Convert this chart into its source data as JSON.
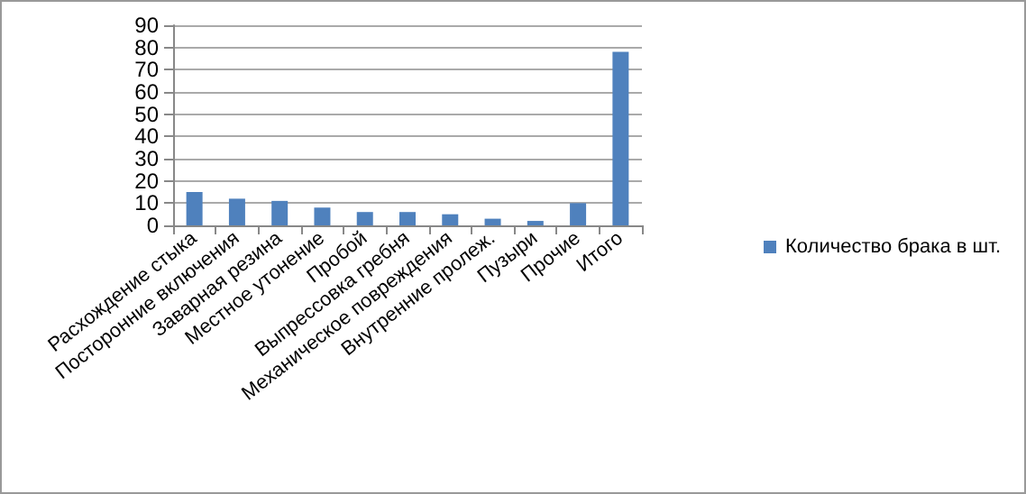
{
  "chart_data": {
    "type": "bar",
    "categories": [
      "Расхождение стыка",
      "Посторонние включения",
      "Заварная резина",
      "Местное утонение",
      "Пробой",
      "Выпрессовка гребня",
      "Механическое повреждения",
      "Внутренние пролеж.",
      "Пузыри",
      "Прочие",
      "Итого"
    ],
    "series": [
      {
        "name": "Количество брака в шт.",
        "color": "#4f81bd",
        "values": [
          15,
          12,
          11,
          8,
          6,
          6,
          5,
          3,
          2,
          10,
          78
        ]
      }
    ],
    "ylim": [
      0,
      90
    ],
    "yticks": [
      0,
      10,
      20,
      30,
      40,
      50,
      60,
      70,
      80,
      90
    ],
    "grid": "y",
    "legend": "right"
  }
}
